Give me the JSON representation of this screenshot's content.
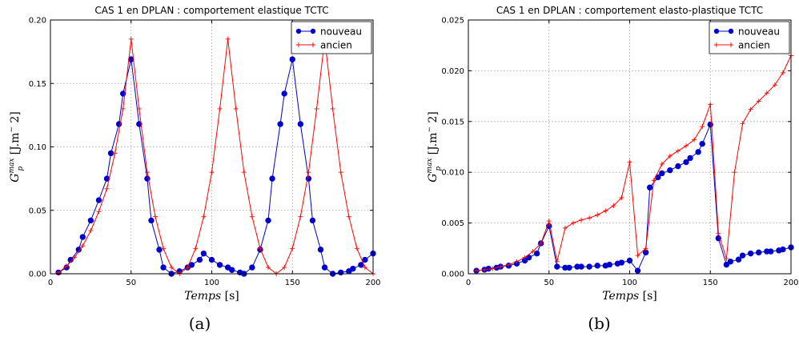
{
  "chart_data": [
    {
      "type": "line",
      "title": "CAS 1 en DPLAN : comportement elastique TCTC",
      "ylabel": "G_p^max [J.m^-2]",
      "ylabel_parts": {
        "main": "G",
        "sub": "p",
        "sup": "max",
        "unit_a": "[J.m",
        "unit_sup": "−",
        "unit_b": "2]"
      },
      "xlabel": "Temps [s]",
      "xlabel_parts": {
        "word": "Temps",
        "unit": "[s]"
      },
      "xlim": [
        0,
        200
      ],
      "ylim": [
        0,
        0.2
      ],
      "grid": true,
      "legend_position": "top-right",
      "xticks": [
        "0",
        "50",
        "100",
        "150",
        "200"
      ],
      "yticks": [
        "0.00",
        "0.05",
        "0.10",
        "0.15",
        "0.20"
      ],
      "caption": "(a)",
      "series": [
        {
          "name": "nouveau",
          "color": "#0000cc",
          "marker": "circle",
          "x": [
            5,
            10,
            12.5,
            17.5,
            20,
            25,
            30,
            35,
            37.5,
            42.5,
            45,
            50,
            55,
            60,
            62.5,
            67.5,
            70,
            75,
            80,
            85,
            87.5,
            92.5,
            95,
            100,
            105,
            110,
            112.5,
            117.5,
            120,
            125,
            130,
            135,
            137.5,
            142.5,
            145,
            150,
            155,
            160,
            162.5,
            167.5,
            170,
            175,
            180,
            185,
            187.5,
            192.5,
            195,
            200
          ],
          "y": [
            0.001,
            0.005,
            0.011,
            0.019,
            0.029,
            0.042,
            0.058,
            0.075,
            0.095,
            0.118,
            0.142,
            0.169,
            0.118,
            0.075,
            0.042,
            0.019,
            0.005,
            0.0,
            0.002,
            0.005,
            0.007,
            0.011,
            0.016,
            0.011,
            0.007,
            0.005,
            0.003,
            0.001,
            0.0,
            0.005,
            0.019,
            0.042,
            0.075,
            0.118,
            0.142,
            0.169,
            0.118,
            0.075,
            0.042,
            0.019,
            0.005,
            0.0,
            0.001,
            0.002,
            0.004,
            0.007,
            0.011,
            0.016
          ]
        },
        {
          "name": "ancien",
          "color": "#ff0000",
          "marker": "plus",
          "x": [
            5,
            10,
            15,
            20,
            25,
            30,
            35,
            40,
            45,
            50,
            55,
            60,
            65,
            70,
            75,
            80,
            85,
            90,
            95,
            100,
            105,
            110,
            115,
            120,
            125,
            130,
            135,
            140,
            145,
            150,
            155,
            160,
            165,
            170,
            175,
            180,
            185,
            190,
            195,
            200
          ],
          "y": [
            0.001,
            0.006,
            0.013,
            0.022,
            0.034,
            0.049,
            0.067,
            0.095,
            0.13,
            0.185,
            0.13,
            0.08,
            0.045,
            0.02,
            0.005,
            0.0,
            0.005,
            0.02,
            0.045,
            0.08,
            0.13,
            0.185,
            0.13,
            0.08,
            0.045,
            0.02,
            0.005,
            0.0,
            0.005,
            0.02,
            0.045,
            0.08,
            0.13,
            0.185,
            0.13,
            0.08,
            0.045,
            0.02,
            0.005,
            0.0
          ]
        }
      ]
    },
    {
      "type": "line",
      "title": "CAS 1 en DPLAN : comportement elasto-plastique TCTC",
      "ylabel": "G_p^max [J.m^-2]",
      "ylabel_parts": {
        "main": "G",
        "sub": "p",
        "sup": "max",
        "unit_a": "[J.m",
        "unit_sup": "−",
        "unit_b": "2]"
      },
      "xlabel": "Temps [s]",
      "xlabel_parts": {
        "word": "Temps",
        "unit": "[s]"
      },
      "xlim": [
        0,
        200
      ],
      "ylim": [
        0,
        0.025
      ],
      "grid": true,
      "legend_position": "top-right",
      "xticks": [
        "0",
        "50",
        "100",
        "150",
        "200"
      ],
      "yticks": [
        "0.000",
        "0.005",
        "0.010",
        "0.015",
        "0.020",
        "0.025"
      ],
      "caption": "(b)",
      "series": [
        {
          "name": "nouveau",
          "color": "#0000cc",
          "marker": "circle",
          "x": [
            5,
            10,
            12.5,
            17.5,
            20,
            25,
            30,
            35,
            37.5,
            42.5,
            45,
            50,
            55,
            60,
            62.5,
            67.5,
            70,
            75,
            80,
            85,
            87.5,
            92.5,
            95,
            100,
            105,
            110,
            112.5,
            117.5,
            120,
            125,
            130,
            135,
            137.5,
            142.5,
            145,
            150,
            155,
            160,
            162.5,
            167.5,
            170,
            175,
            180,
            185,
            187.5,
            192.5,
            195,
            200
          ],
          "y": [
            0.0003,
            0.0004,
            0.0005,
            0.0006,
            0.0007,
            0.0008,
            0.001,
            0.0013,
            0.0016,
            0.002,
            0.003,
            0.0047,
            0.0007,
            0.0006,
            0.0006,
            0.0007,
            0.0007,
            0.0007,
            0.0008,
            0.0008,
            0.0009,
            0.001,
            0.0011,
            0.0013,
            0.0003,
            0.0021,
            0.0085,
            0.0095,
            0.0099,
            0.0102,
            0.0106,
            0.011,
            0.0114,
            0.012,
            0.0128,
            0.0147,
            0.0035,
            0.0009,
            0.0012,
            0.0014,
            0.0018,
            0.002,
            0.0021,
            0.0022,
            0.0022,
            0.0023,
            0.0024,
            0.0026
          ]
        },
        {
          "name": "ancien",
          "color": "#ff0000",
          "marker": "plus",
          "x": [
            5,
            10,
            15,
            20,
            25,
            30,
            35,
            40,
            45,
            50,
            55,
            60,
            65,
            70,
            75,
            80,
            85,
            90,
            95,
            100,
            105,
            110,
            115,
            120,
            125,
            130,
            135,
            140,
            145,
            150,
            155,
            160,
            165,
            170,
            175,
            180,
            185,
            190,
            195,
            200
          ],
          "y": [
            0.0003,
            0.0004,
            0.0005,
            0.0007,
            0.0009,
            0.0012,
            0.0016,
            0.0022,
            0.003,
            0.0052,
            0.0012,
            0.0045,
            0.005,
            0.0053,
            0.0055,
            0.0058,
            0.0062,
            0.0067,
            0.0075,
            0.011,
            0.0018,
            0.0025,
            0.0092,
            0.0108,
            0.0116,
            0.0121,
            0.0126,
            0.0132,
            0.0145,
            0.0167,
            0.004,
            0.0015,
            0.01,
            0.0148,
            0.0162,
            0.017,
            0.0178,
            0.0186,
            0.0198,
            0.0215
          ]
        }
      ]
    }
  ]
}
